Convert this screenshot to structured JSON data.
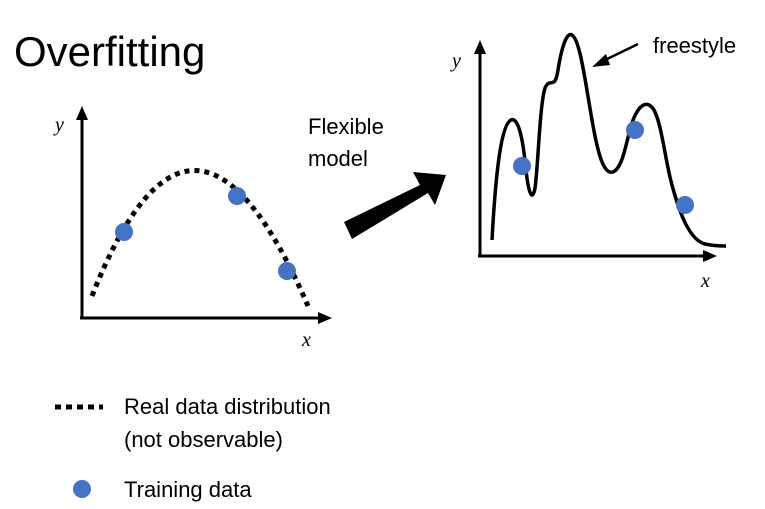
{
  "title": "Overfitting",
  "left_plot": {
    "x_label": "x",
    "y_label": "y"
  },
  "right_plot": {
    "x_label": "x",
    "y_label": "y",
    "annotation": "freestyle"
  },
  "middle_arrow": {
    "label_line1": "Flexible",
    "label_line2": "model"
  },
  "legend": {
    "dotted_line_label_line1": "Real data distribution",
    "dotted_line_label_line2": "(not observable)",
    "dot_label": "Training data"
  },
  "colors": {
    "training_point": "#4472C4",
    "ink": "#000000",
    "background": "#ffffff"
  }
}
